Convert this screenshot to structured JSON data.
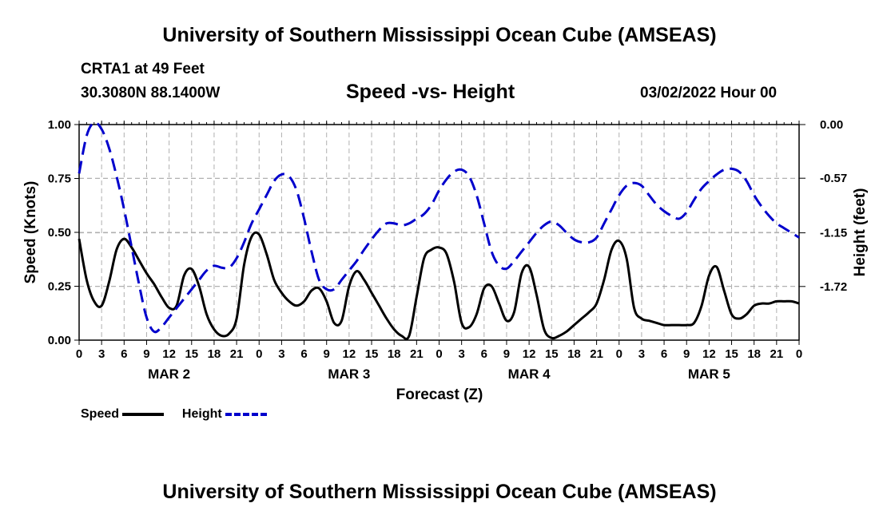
{
  "header": {
    "title": "University of Southern Mississippi Ocean Cube (AMSEAS)",
    "station": "CRTA1 at 49 Feet",
    "coords": "30.3080N  88.1400W",
    "subtitle": "Speed -vs- Height",
    "date": "03/02/2022 Hour 00"
  },
  "footer": {
    "title": "University of Southern Mississippi Ocean Cube (AMSEAS)"
  },
  "colors": {
    "speed": "#000000",
    "height": "#0000cc",
    "grid": "#b0b0b0"
  },
  "chart_data": {
    "type": "line",
    "title": "Speed -vs- Height",
    "xlabel": "Forecast (Z)",
    "ylabel": "Speed (Knots)",
    "y2label": "Height (feet)",
    "xlim": [
      0,
      96
    ],
    "ylim": [
      0,
      1
    ],
    "y2lim": [
      -2.29,
      0.0
    ],
    "x_ticks": [
      0,
      3,
      6,
      9,
      12,
      15,
      18,
      21,
      24,
      27,
      30,
      33,
      36,
      39,
      42,
      45,
      48,
      51,
      54,
      57,
      60,
      63,
      66,
      69,
      72,
      75,
      78,
      81,
      84,
      87,
      90,
      93,
      96
    ],
    "x_tick_labels": [
      "0",
      "3",
      "6",
      "9",
      "12",
      "15",
      "18",
      "21",
      "0",
      "3",
      "6",
      "9",
      "12",
      "15",
      "18",
      "21",
      "0",
      "3",
      "6",
      "9",
      "12",
      "15",
      "18",
      "21",
      "0",
      "3",
      "6",
      "9",
      "12",
      "15",
      "18",
      "21",
      "0"
    ],
    "day_labels": [
      {
        "x": 12,
        "label": "MAR 2"
      },
      {
        "x": 36,
        "label": "MAR 3"
      },
      {
        "x": 60,
        "label": "MAR 4"
      },
      {
        "x": 84,
        "label": "MAR 5"
      }
    ],
    "y_ticks": [
      0,
      0.25,
      0.5,
      0.75,
      1.0
    ],
    "y_tick_labels": [
      "0.00",
      "0.25",
      "0.50",
      "0.75",
      "1.00"
    ],
    "y2_ticks": [
      0.0,
      -0.57,
      -1.15,
      -1.72
    ],
    "y2_tick_labels": [
      "0.00",
      "-0.57",
      "-1.15",
      "-1.72"
    ],
    "legend": [
      {
        "name": "Speed",
        "style": "solid"
      },
      {
        "name": "Height",
        "style": "dashed"
      }
    ],
    "series": [
      {
        "name": "Speed",
        "axis": "left",
        "x": [
          0,
          1,
          2,
          3,
          4,
          5,
          6,
          7,
          8,
          9,
          10,
          11,
          12,
          13,
          14,
          15,
          16,
          17,
          18,
          19,
          20,
          21,
          22,
          23,
          24,
          25,
          26,
          27,
          28,
          29,
          30,
          31,
          32,
          33,
          34,
          35,
          36,
          37,
          38,
          39,
          40,
          41,
          42,
          43,
          44,
          45,
          46,
          47,
          48,
          49,
          50,
          51,
          52,
          53,
          54,
          55,
          56,
          57,
          58,
          59,
          60,
          61,
          62,
          63,
          64,
          65,
          66,
          67,
          68,
          69,
          70,
          71,
          72,
          73,
          74,
          75,
          76,
          77,
          78,
          79,
          80,
          81,
          82,
          83,
          84,
          85,
          86,
          87,
          88,
          89,
          90,
          91,
          92,
          93,
          94,
          95,
          96
        ],
        "values": [
          0.47,
          0.28,
          0.18,
          0.16,
          0.27,
          0.42,
          0.47,
          0.43,
          0.37,
          0.31,
          0.26,
          0.2,
          0.15,
          0.16,
          0.3,
          0.33,
          0.25,
          0.12,
          0.05,
          0.02,
          0.03,
          0.1,
          0.35,
          0.48,
          0.49,
          0.4,
          0.28,
          0.22,
          0.18,
          0.16,
          0.18,
          0.23,
          0.24,
          0.18,
          0.08,
          0.09,
          0.25,
          0.32,
          0.28,
          0.22,
          0.16,
          0.1,
          0.05,
          0.02,
          0.02,
          0.2,
          0.38,
          0.42,
          0.43,
          0.4,
          0.27,
          0.08,
          0.06,
          0.12,
          0.24,
          0.25,
          0.17,
          0.09,
          0.13,
          0.31,
          0.34,
          0.21,
          0.05,
          0.01,
          0.02,
          0.04,
          0.07,
          0.1,
          0.13,
          0.17,
          0.28,
          0.42,
          0.46,
          0.38,
          0.15,
          0.1,
          0.09,
          0.08,
          0.07,
          0.07,
          0.07,
          0.07,
          0.08,
          0.16,
          0.3,
          0.34,
          0.23,
          0.12,
          0.1,
          0.12,
          0.16,
          0.17,
          0.17,
          0.18,
          0.18,
          0.18,
          0.17
        ]
      },
      {
        "name": "Height",
        "axis": "right",
        "x": [
          0,
          1,
          2,
          3,
          4,
          5,
          6,
          7,
          8,
          9,
          10,
          11,
          12,
          13,
          14,
          15,
          16,
          17,
          18,
          19,
          20,
          21,
          22,
          23,
          24,
          25,
          26,
          27,
          28,
          29,
          30,
          31,
          32,
          33,
          34,
          35,
          36,
          37,
          38,
          39,
          40,
          41,
          42,
          43,
          44,
          45,
          46,
          47,
          48,
          49,
          50,
          51,
          52,
          53,
          54,
          55,
          56,
          57,
          58,
          59,
          60,
          61,
          62,
          63,
          64,
          65,
          66,
          67,
          68,
          69,
          70,
          71,
          72,
          73,
          74,
          75,
          76,
          77,
          78,
          79,
          80,
          81,
          82,
          83,
          84,
          85,
          86,
          87,
          88,
          89,
          90,
          91,
          92,
          93,
          94,
          95,
          96
        ],
        "values": [
          -0.52,
          -0.12,
          0.02,
          -0.05,
          -0.25,
          -0.55,
          -0.9,
          -1.3,
          -1.7,
          -2.05,
          -2.2,
          -2.15,
          -2.05,
          -1.95,
          -1.85,
          -1.75,
          -1.65,
          -1.55,
          -1.5,
          -1.52,
          -1.52,
          -1.42,
          -1.25,
          -1.05,
          -0.9,
          -0.75,
          -0.6,
          -0.53,
          -0.55,
          -0.7,
          -1.0,
          -1.35,
          -1.65,
          -1.75,
          -1.75,
          -1.65,
          -1.55,
          -1.45,
          -1.33,
          -1.22,
          -1.12,
          -1.05,
          -1.05,
          -1.07,
          -1.05,
          -1.0,
          -0.95,
          -0.85,
          -0.7,
          -0.58,
          -0.5,
          -0.48,
          -0.55,
          -0.75,
          -1.05,
          -1.35,
          -1.5,
          -1.53,
          -1.45,
          -1.35,
          -1.25,
          -1.15,
          -1.07,
          -1.03,
          -1.07,
          -1.15,
          -1.22,
          -1.25,
          -1.25,
          -1.2,
          -1.05,
          -0.9,
          -0.75,
          -0.65,
          -0.62,
          -0.65,
          -0.75,
          -0.85,
          -0.92,
          -0.97,
          -1.0,
          -0.93,
          -0.8,
          -0.68,
          -0.6,
          -0.53,
          -0.48,
          -0.47,
          -0.5,
          -0.6,
          -0.75,
          -0.87,
          -0.97,
          -1.05,
          -1.1,
          -1.15,
          -1.2
        ]
      }
    ]
  }
}
